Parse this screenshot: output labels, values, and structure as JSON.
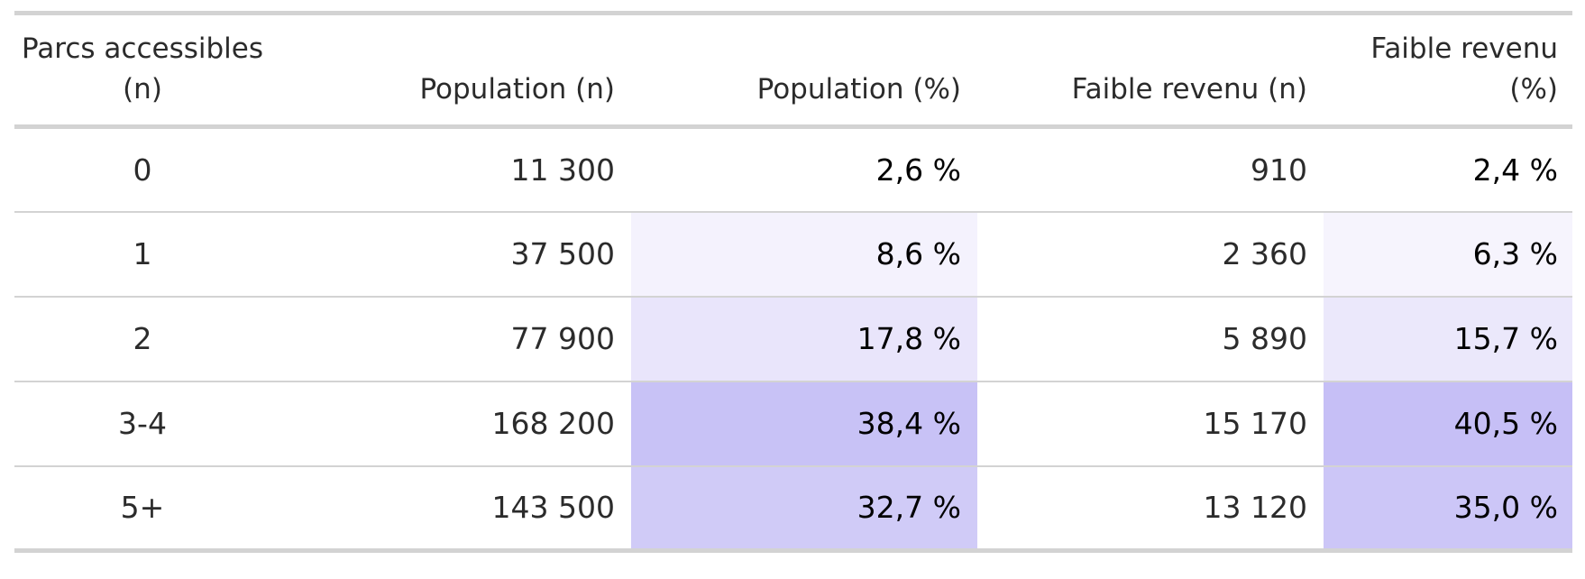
{
  "table": {
    "columns": [
      "Parcs accessibles (n)",
      "Population (n)",
      "Population (%)",
      "Faible revenu (n)",
      "Faible revenu (%)"
    ],
    "rows": [
      {
        "parks": "0",
        "population_n": "11 300",
        "population_pct": "2,6 %",
        "low_income_n": "910",
        "low_income_pct": "2,4 %",
        "population_shade": "#ffffff",
        "low_income_shade": "#ffffff"
      },
      {
        "parks": "1",
        "population_n": "37 500",
        "population_pct": "8,6 %",
        "low_income_n": "2 360",
        "low_income_pct": "6,3 %",
        "population_shade": "#f4f2fd",
        "low_income_shade": "#f6f4fd"
      },
      {
        "parks": "2",
        "population_n": "77 900",
        "population_pct": "17,8 %",
        "low_income_n": "5 890",
        "low_income_pct": "15,7 %",
        "population_shade": "#e9e5fb",
        "low_income_shade": "#ebe8fb"
      },
      {
        "parks": "3-4",
        "population_n": "168 200",
        "population_pct": "38,4 %",
        "low_income_n": "15 170",
        "low_income_pct": "40,5 %",
        "population_shade": "#c8c2f6",
        "low_income_shade": "#c6bff6"
      },
      {
        "parks": "5+",
        "population_n": "143 500",
        "population_pct": "32,7 %",
        "low_income_n": "13 120",
        "low_income_pct": "35,0 %",
        "population_shade": "#d0cbf7",
        "low_income_shade": "#ccc6f7"
      }
    ]
  }
}
